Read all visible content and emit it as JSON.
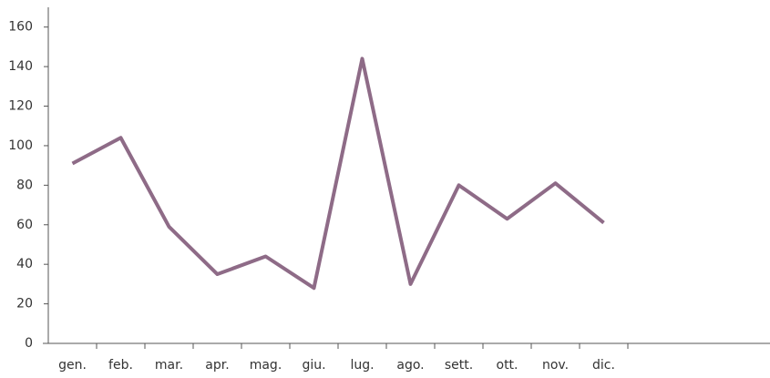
{
  "chart_data": {
    "type": "line",
    "categories": [
      "gen.",
      "feb.",
      "mar.",
      "apr.",
      "mag.",
      "giu.",
      "lug.",
      "ago.",
      "sett.",
      "ott.",
      "nov.",
      "dic."
    ],
    "series": [
      {
        "color": "#8e6b87",
        "values": [
          91,
          104,
          59,
          35,
          44,
          28,
          144,
          30,
          80,
          63,
          81,
          61
        ]
      }
    ],
    "ylim": [
      0,
      170
    ],
    "yticks": [
      0,
      20,
      40,
      60,
      80,
      100,
      120,
      140,
      160
    ],
    "grid": false
  }
}
